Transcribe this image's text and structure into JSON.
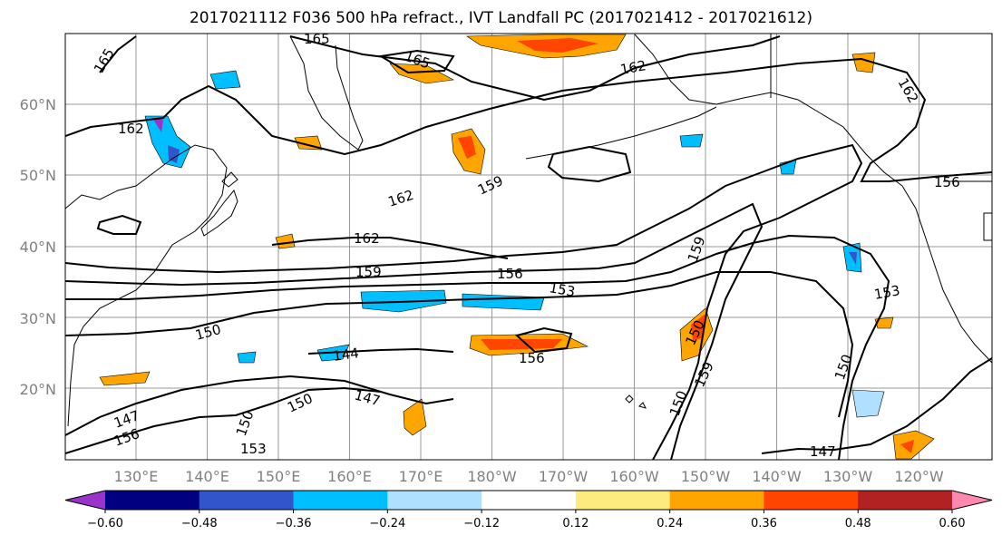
{
  "title": "2017021112 F036 500 hPa refract., IVT Landfall PC (2017021412 - 2017021612)",
  "lat_labels": [
    "60°N",
    "50°N",
    "40°N",
    "30°N",
    "20°N"
  ],
  "lon_labels": [
    "130°E",
    "140°E",
    "150°E",
    "160°E",
    "170°E",
    "180°W",
    "170°W",
    "160°W",
    "150°W",
    "140°W",
    "130°W",
    "120°W"
  ],
  "contour_labels": [
    "165",
    "165",
    "165",
    "162",
    "162",
    "162",
    "162",
    "159",
    "159",
    "159",
    "156",
    "156",
    "156",
    "153",
    "153",
    "153",
    "150",
    "150",
    "150",
    "150",
    "150",
    "150",
    "147",
    "147",
    "147",
    "144",
    "156",
    "159",
    "162"
  ],
  "colorbar": {
    "tick_labels": [
      "−0.60",
      "−0.48",
      "−0.36",
      "−0.24",
      "−0.12",
      "0.12",
      "0.24",
      "0.36",
      "0.48",
      "0.60"
    ],
    "bins": [
      {
        "color": "#9933cc"
      },
      {
        "color": "#000080"
      },
      {
        "color": "#3355cc"
      },
      {
        "color": "#00bfff"
      },
      {
        "color": "#b0e0ff"
      },
      {
        "color": "#ffffff"
      },
      {
        "color": "#ffea80"
      },
      {
        "color": "#ffa500"
      },
      {
        "color": "#ff4500"
      },
      {
        "color": "#b22222"
      },
      {
        "color": "#ff88b0"
      }
    ]
  }
}
